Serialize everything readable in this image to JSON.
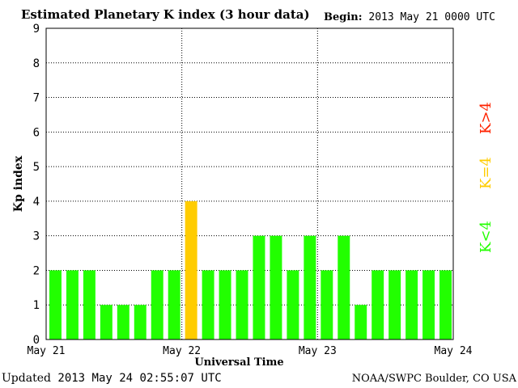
{
  "header": {
    "title": "Estimated Planetary K index (3 hour data)",
    "begin_label": "Begin:",
    "begin_value": "2013 May 21 0000 UTC"
  },
  "footer": {
    "updated_label": "Updated",
    "updated_value": "2013 May 24 02:55:07 UTC",
    "credit": "NOAA/SWPC Boulder, CO USA"
  },
  "legend": {
    "low": "K<4",
    "mid": "K=4",
    "high": "K>4"
  },
  "colors": {
    "low": "#22ff00",
    "mid": "#ffcc00",
    "high": "#ff2200"
  },
  "chart_data": {
    "type": "bar",
    "ylabel": "Kp index",
    "xlabel": "Universal Time",
    "ylim": [
      0,
      9
    ],
    "yticks": [
      0,
      1,
      2,
      3,
      4,
      5,
      6,
      7,
      8,
      9
    ],
    "x_ticks": [
      "May 21",
      "May 22",
      "May 23",
      "May 24"
    ],
    "values": [
      2,
      2,
      2,
      1,
      1,
      1,
      2,
      2,
      4,
      2,
      2,
      2,
      3,
      3,
      2,
      3,
      2,
      3,
      1,
      2,
      2,
      2,
      2,
      2
    ],
    "grid": true
  }
}
